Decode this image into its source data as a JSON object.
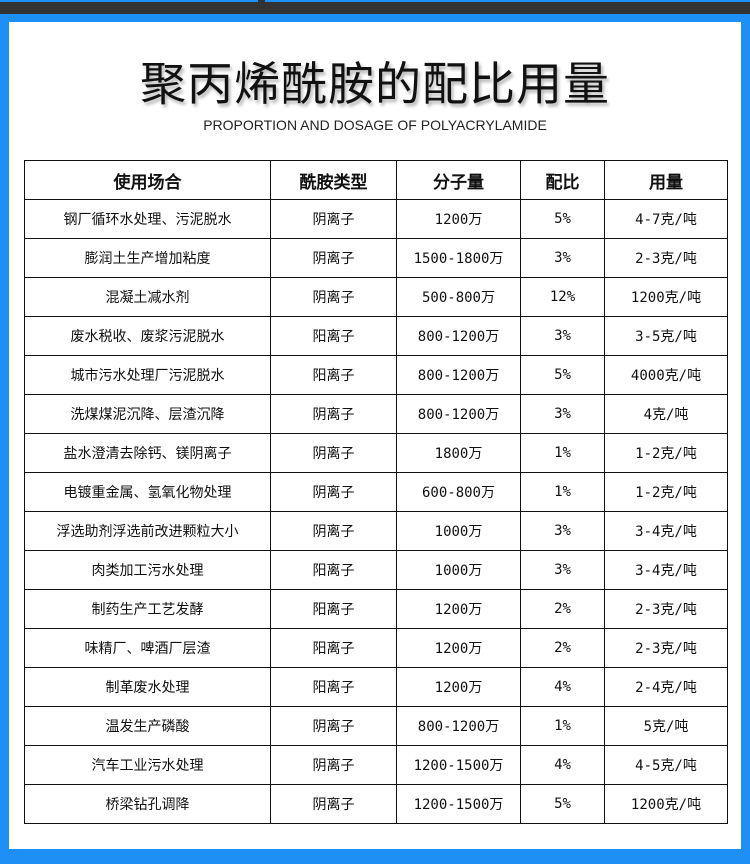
{
  "title": "聚丙烯酰胺的配比用量",
  "subtitle": "PROPORTION AND DOSAGE OF POLYACRYLAMIDE",
  "colors": {
    "frame": "#1e90f5",
    "topbar": "#333333"
  },
  "table": {
    "headers": [
      "使用场合",
      "酰胺类型",
      "分子量",
      "配比",
      "用量"
    ],
    "rows": [
      [
        "钢厂循环水处理、污泥脱水",
        "阴离子",
        "1200万",
        "5%",
        "4-7克/吨"
      ],
      [
        "膨润土生产增加粘度",
        "阴离子",
        "1500-1800万",
        "3%",
        "2-3克/吨"
      ],
      [
        "混凝土减水剂",
        "阴离子",
        "500-800万",
        "12%",
        "1200克/吨"
      ],
      [
        "废水税收、废浆污泥脱水",
        "阳离子",
        "800-1200万",
        "3%",
        "3-5克/吨"
      ],
      [
        "城市污水处理厂污泥脱水",
        "阳离子",
        "800-1200万",
        "5%",
        "4000克/吨"
      ],
      [
        "洗煤煤泥沉降、层渣沉降",
        "阴离子",
        "800-1200万",
        "3%",
        "4克/吨"
      ],
      [
        "盐水澄清去除钙、镁阴离子",
        "阴离子",
        "1800万",
        "1%",
        "1-2克/吨"
      ],
      [
        "电镀重金属、氢氧化物处理",
        "阴离子",
        "600-800万",
        "1%",
        "1-2克/吨"
      ],
      [
        "浮选助剂浮选前改进颗粒大小",
        "阴离子",
        "1000万",
        "3%",
        "3-4克/吨"
      ],
      [
        "肉类加工污水处理",
        "阳离子",
        "1000万",
        "3%",
        "3-4克/吨"
      ],
      [
        "制药生产工艺发酵",
        "阳离子",
        "1200万",
        "2%",
        "2-3克/吨"
      ],
      [
        "味精厂、啤酒厂层渣",
        "阳离子",
        "1200万",
        "2%",
        "2-3克/吨"
      ],
      [
        "制革废水处理",
        "阳离子",
        "1200万",
        "4%",
        "2-4克/吨"
      ],
      [
        "温发生产磷酸",
        "阴离子",
        "800-1200万",
        "1%",
        "5克/吨"
      ],
      [
        "汽车工业污水处理",
        "阴离子",
        "1200-1500万",
        "4%",
        "4-5克/吨"
      ],
      [
        "桥梁钻孔调降",
        "阴离子",
        "1200-1500万",
        "5%",
        "1200克/吨"
      ]
    ]
  }
}
